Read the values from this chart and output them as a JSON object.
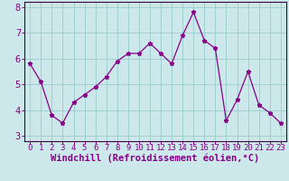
{
  "x": [
    0,
    1,
    2,
    3,
    4,
    5,
    6,
    7,
    8,
    9,
    10,
    11,
    12,
    13,
    14,
    15,
    16,
    17,
    18,
    19,
    20,
    21,
    22,
    23
  ],
  "y": [
    5.8,
    5.1,
    3.8,
    3.5,
    4.3,
    4.6,
    4.9,
    5.3,
    5.9,
    6.2,
    6.2,
    6.6,
    6.2,
    5.8,
    6.9,
    7.8,
    6.7,
    6.4,
    3.6,
    4.4,
    5.5,
    4.2,
    3.9,
    3.5
  ],
  "line_color": "#880088",
  "marker": "*",
  "marker_size": 3.5,
  "background_color": "#cce8ea",
  "grid_color": "#99cccc",
  "xlabel": "Windchill (Refroidissement éolien,°C)",
  "ylabel": "",
  "title": "",
  "xlim": [
    -0.5,
    23.5
  ],
  "ylim": [
    2.8,
    8.2
  ],
  "yticks": [
    3,
    4,
    5,
    6,
    7,
    8
  ],
  "xticks": [
    0,
    1,
    2,
    3,
    4,
    5,
    6,
    7,
    8,
    9,
    10,
    11,
    12,
    13,
    14,
    15,
    16,
    17,
    18,
    19,
    20,
    21,
    22,
    23
  ],
  "xlabel_color": "#880088",
  "tick_color": "#880088",
  "spine_color": "#440044",
  "font_size": 6.5,
  "xlabel_fontsize": 7.5
}
